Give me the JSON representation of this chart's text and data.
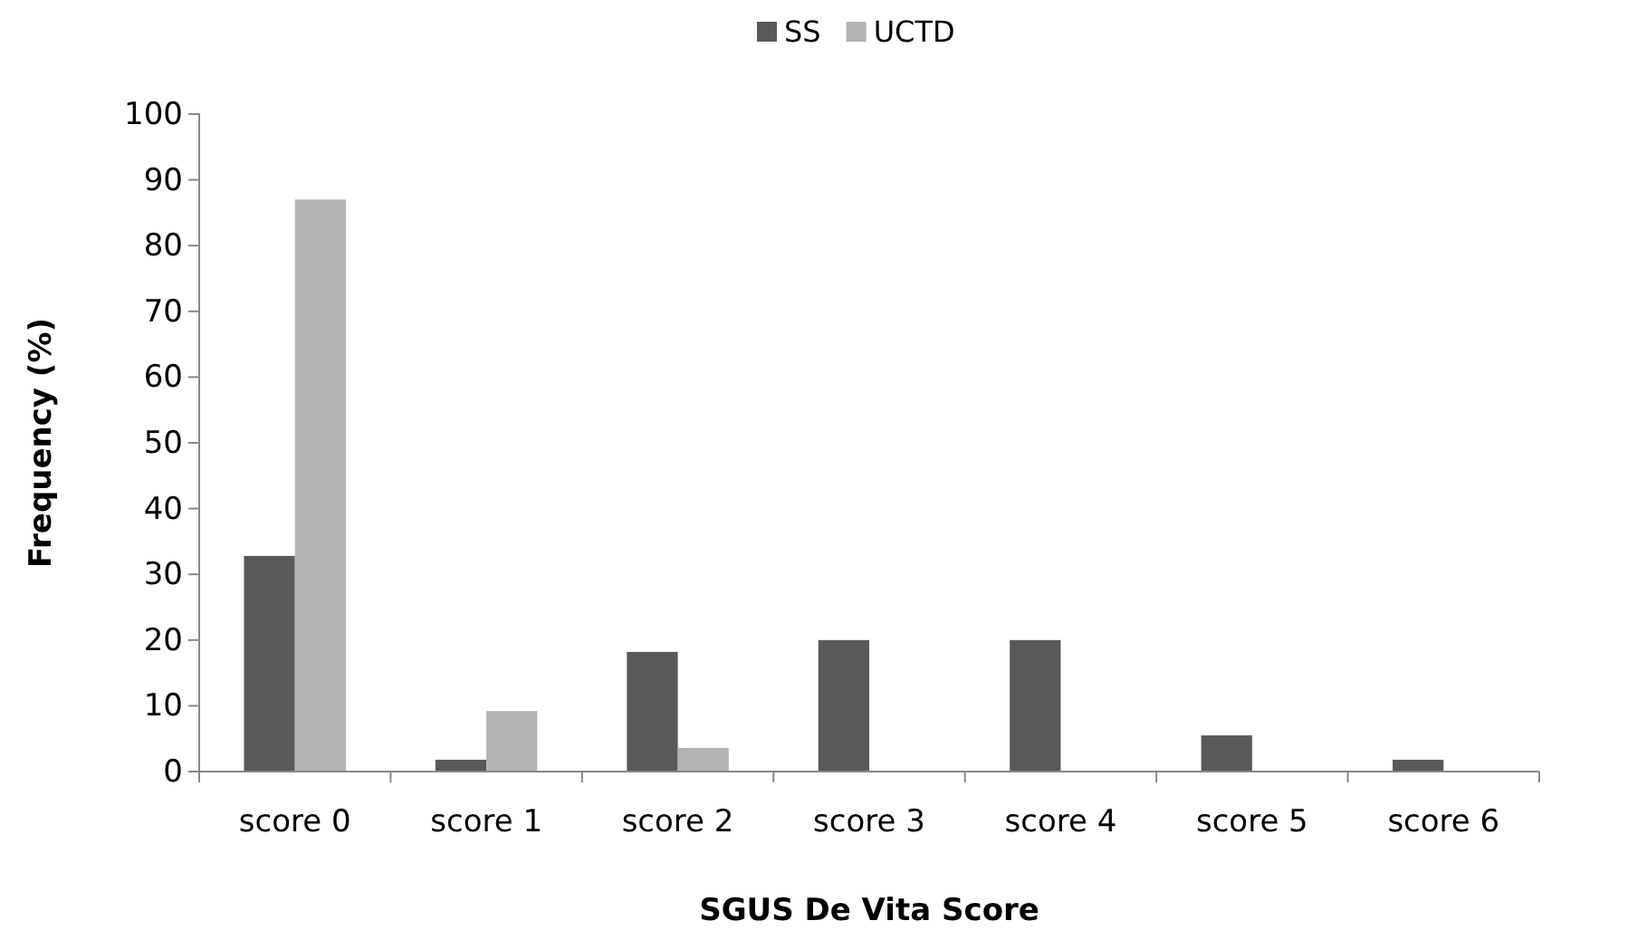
{
  "chart_data": {
    "type": "bar",
    "xlabel": "SGUS De Vita Score",
    "ylabel": "Frequency (%)",
    "categories": [
      "score 0",
      "score 1",
      "score 2",
      "score 3",
      "score 4",
      "score 5",
      "score 6"
    ],
    "series": [
      {
        "name": "SS",
        "color": "#595959",
        "values": [
          32.8,
          1.8,
          18.2,
          20,
          20,
          5.5,
          1.8
        ]
      },
      {
        "name": "UCTD",
        "color": "#b3b3b3",
        "values": [
          87,
          9.2,
          3.6,
          0,
          0,
          0,
          0
        ]
      }
    ],
    "ylim": [
      0,
      100
    ],
    "yticks": [
      0,
      10,
      20,
      30,
      40,
      50,
      60,
      70,
      80,
      90,
      100
    ],
    "legend": "top"
  }
}
